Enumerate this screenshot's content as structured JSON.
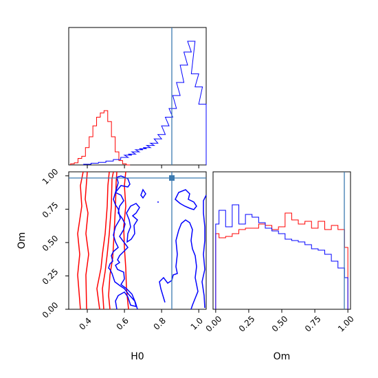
{
  "chart_data": {
    "type": "corner",
    "parameters": [
      "H0",
      "Om"
    ],
    "truth": {
      "H0": 0.865,
      "Om": 0.98
    },
    "colors": {
      "red": "#ff0000",
      "blue": "#0000ff",
      "truth": "#3b7ab0"
    },
    "panels": [
      {
        "id": "hist-H0",
        "type": "step-histogram",
        "xlim": [
          0.3,
          1.04
        ],
        "xticks": [
          0.4,
          0.6,
          0.8,
          1.0
        ],
        "series": [
          {
            "color": "red",
            "x": [
              0.32,
              0.34,
              0.36,
              0.38,
              0.4,
              0.42,
              0.44,
              0.46,
              0.48,
              0.5,
              0.52,
              0.54,
              0.56,
              0.58,
              0.6,
              0.62
            ],
            "values": [
              0.5,
              1,
              3,
              4,
              8,
              13,
              18,
              22,
              24,
              25,
              20,
              13,
              6,
              2,
              0.5,
              0
            ]
          },
          {
            "color": "blue",
            "x": [
              0.4,
              0.44,
              0.48,
              0.52,
              0.56,
              0.6,
              0.62,
              0.64,
              0.66,
              0.68,
              0.7,
              0.72,
              0.74,
              0.76,
              0.78,
              0.8,
              0.82,
              0.84,
              0.86,
              0.88,
              0.9,
              0.92,
              0.94,
              0.96,
              0.98,
              1.0,
              1.02
            ],
            "values": [
              0.3,
              0.8,
              1.2,
              1.8,
              2.5,
              3.5,
              4.5,
              5,
              6,
              7,
              7.5,
              8,
              9,
              10,
              12,
              14,
              18,
              22,
              26,
              32,
              38,
              46,
              52,
              57,
              42,
              36,
              28
            ]
          }
        ]
      },
      {
        "id": "contour-H0-Om",
        "type": "contour",
        "xlim": [
          0.3,
          1.04
        ],
        "ylim": [
          0.0,
          1.03
        ],
        "xticks": [
          0.4,
          0.6,
          0.8,
          1.0
        ],
        "yticks": [
          0.0,
          0.25,
          0.5,
          0.75,
          1.0
        ],
        "xlabel": "H0",
        "ylabel": "Om"
      },
      {
        "id": "hist-Om",
        "type": "step-histogram",
        "xlim": [
          -0.02,
          1.02
        ],
        "xticks": [
          0.0,
          0.25,
          0.5,
          0.75,
          1.0
        ],
        "xlabel": "Om",
        "series": [
          {
            "color": "red",
            "x": [
              0.0,
              0.05,
              0.1,
              0.15,
              0.2,
              0.25,
              0.3,
              0.35,
              0.4,
              0.45,
              0.5,
              0.55,
              0.6,
              0.65,
              0.7,
              0.75,
              0.8,
              0.85,
              0.9,
              0.95,
              1.0
            ],
            "values": [
              0.55,
              0.52,
              0.53,
              0.55,
              0.58,
              0.59,
              0.59,
              0.62,
              0.61,
              0.58,
              0.6,
              0.7,
              0.65,
              0.62,
              0.64,
              0.59,
              0.64,
              0.58,
              0.61,
              0.58,
              0.45
            ]
          },
          {
            "color": "blue",
            "x": [
              0.0,
              0.05,
              0.1,
              0.15,
              0.2,
              0.25,
              0.3,
              0.35,
              0.4,
              0.45,
              0.5,
              0.55,
              0.6,
              0.65,
              0.7,
              0.75,
              0.8,
              0.85,
              0.9,
              0.95,
              1.0
            ],
            "values": [
              0.62,
              0.72,
              0.6,
              0.76,
              0.62,
              0.69,
              0.67,
              0.63,
              0.59,
              0.57,
              0.55,
              0.51,
              0.5,
              0.49,
              0.47,
              0.44,
              0.43,
              0.4,
              0.35,
              0.3,
              0.23
            ]
          }
        ]
      }
    ]
  }
}
